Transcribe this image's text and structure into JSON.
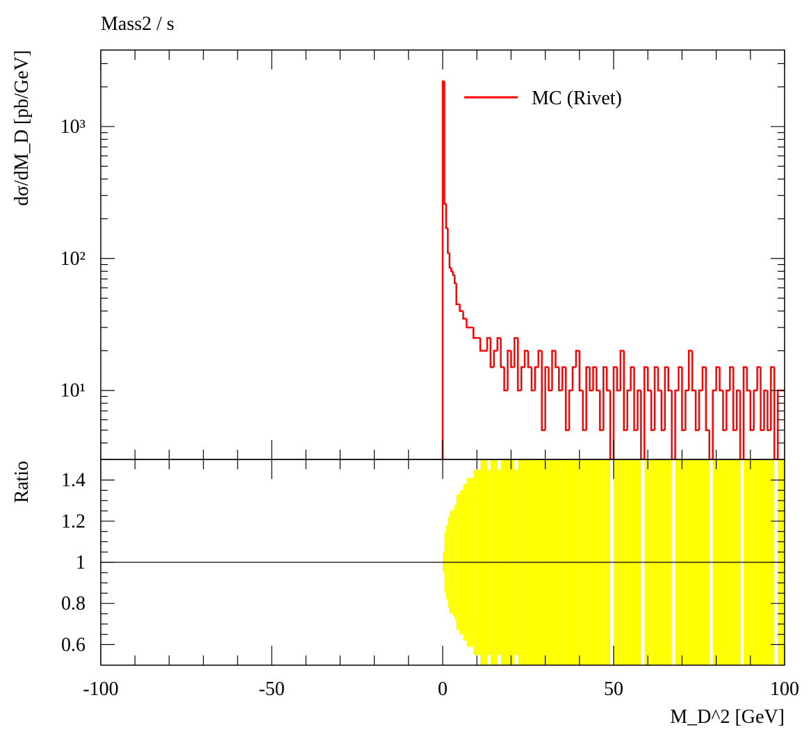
{
  "chart_data": {
    "type": "histogram",
    "title": "Mass2 / s",
    "ylabel": "dσ/dM_D [pb/GeV]",
    "xlabel": "M_D^2 [GeV]",
    "ratio_label": "Ratio",
    "xlim": [
      -100,
      100
    ],
    "xticks": [
      -100,
      -50,
      0,
      50,
      100
    ],
    "ylim": [
      3,
      3800
    ],
    "log_y": true,
    "yticks": [
      {
        "value": 10,
        "label": "10¹"
      },
      {
        "value": 100,
        "label": "10²"
      },
      {
        "value": 1000,
        "label": "10³"
      }
    ],
    "ratio_ylim": [
      0.5,
      1.5
    ],
    "ratio_yticks": [
      0.6,
      0.8,
      1,
      1.2,
      1.4
    ],
    "ratio_reference": 1,
    "legend": "upper right",
    "series": [
      {
        "name": "MC (Rivet)",
        "color": "#ff0000",
        "band_color": "#ffff00"
      }
    ],
    "bins": [
      0,
      0.5,
      1,
      1.5,
      2,
      2.5,
      3,
      3.5,
      4,
      5,
      6,
      7,
      8,
      9,
      10,
      11,
      12,
      13,
      14,
      15,
      16,
      17,
      18,
      19,
      20,
      21,
      22,
      23,
      24,
      25,
      26,
      27,
      28,
      29,
      30,
      31,
      32,
      33,
      34,
      35,
      36,
      37,
      38,
      39,
      40,
      41,
      42,
      43,
      44,
      45,
      46,
      47,
      48,
      49,
      50,
      51,
      52,
      53,
      54,
      55,
      56,
      57,
      58,
      59,
      60,
      61,
      62,
      63,
      64,
      65,
      66,
      67,
      68,
      69,
      70,
      71,
      72,
      73,
      74,
      75,
      76,
      77,
      78,
      79,
      80,
      81,
      82,
      83,
      84,
      85,
      86,
      87,
      88,
      89,
      90,
      91,
      92,
      93,
      94,
      95,
      96,
      97,
      98,
      99,
      100
    ],
    "values": [
      2200,
      260,
      170,
      110,
      85,
      80,
      75,
      65,
      45,
      40,
      35,
      30,
      30,
      25,
      25,
      20,
      20,
      25,
      15,
      20,
      25,
      15,
      10,
      20,
      15,
      25,
      10,
      15,
      20,
      15,
      10,
      15,
      20,
      5,
      15,
      10,
      20,
      15,
      10,
      15,
      5,
      10,
      15,
      20,
      10,
      5,
      15,
      10,
      15,
      10,
      5,
      15,
      10,
      0,
      15,
      10,
      20,
      5,
      10,
      15,
      5,
      10,
      0,
      15,
      10,
      5,
      15,
      10,
      5,
      15,
      10,
      0,
      10,
      15,
      5,
      10,
      20,
      10,
      5,
      10,
      15,
      5,
      0,
      10,
      15,
      10,
      5,
      10,
      15,
      5,
      10,
      0,
      15,
      10,
      5,
      10,
      15,
      5,
      10,
      5,
      15,
      0,
      10,
      10
    ],
    "ratio_errors": [
      0.05,
      0.15,
      0.18,
      0.22,
      0.25,
      0.25,
      0.26,
      0.28,
      0.33,
      0.35,
      0.38,
      0.41,
      0.41,
      0.45,
      0.45,
      0.5,
      0.5,
      0.45,
      0.58,
      0.5,
      0.45,
      0.58,
      0.71,
      0.5,
      0.58,
      0.45,
      0.71,
      0.58,
      0.5,
      0.58,
      0.71,
      0.58,
      0.5,
      1,
      0.58,
      0.71,
      0.5,
      0.58,
      0.71,
      0.58,
      1,
      0.71,
      0.58,
      0.5,
      0.71,
      1,
      0.58,
      0.71,
      0.58,
      0.71,
      1,
      0.58,
      0.71,
      0,
      0.58,
      0.71,
      0.5,
      1,
      0.71,
      0.58,
      1,
      0.71,
      0,
      0.58,
      0.71,
      1,
      0.58,
      0.71,
      1,
      0.58,
      0.71,
      0,
      0.71,
      0.58,
      1,
      0.71,
      0.5,
      0.71,
      1,
      0.71,
      0.58,
      1,
      0,
      0.71,
      0.58,
      0.71,
      1,
      0.71,
      0.58,
      1,
      0.71,
      0,
      0.58,
      0.71,
      1,
      0.71,
      0.58,
      1,
      0.71,
      1,
      0.58,
      0,
      0.71,
      0.71
    ]
  }
}
